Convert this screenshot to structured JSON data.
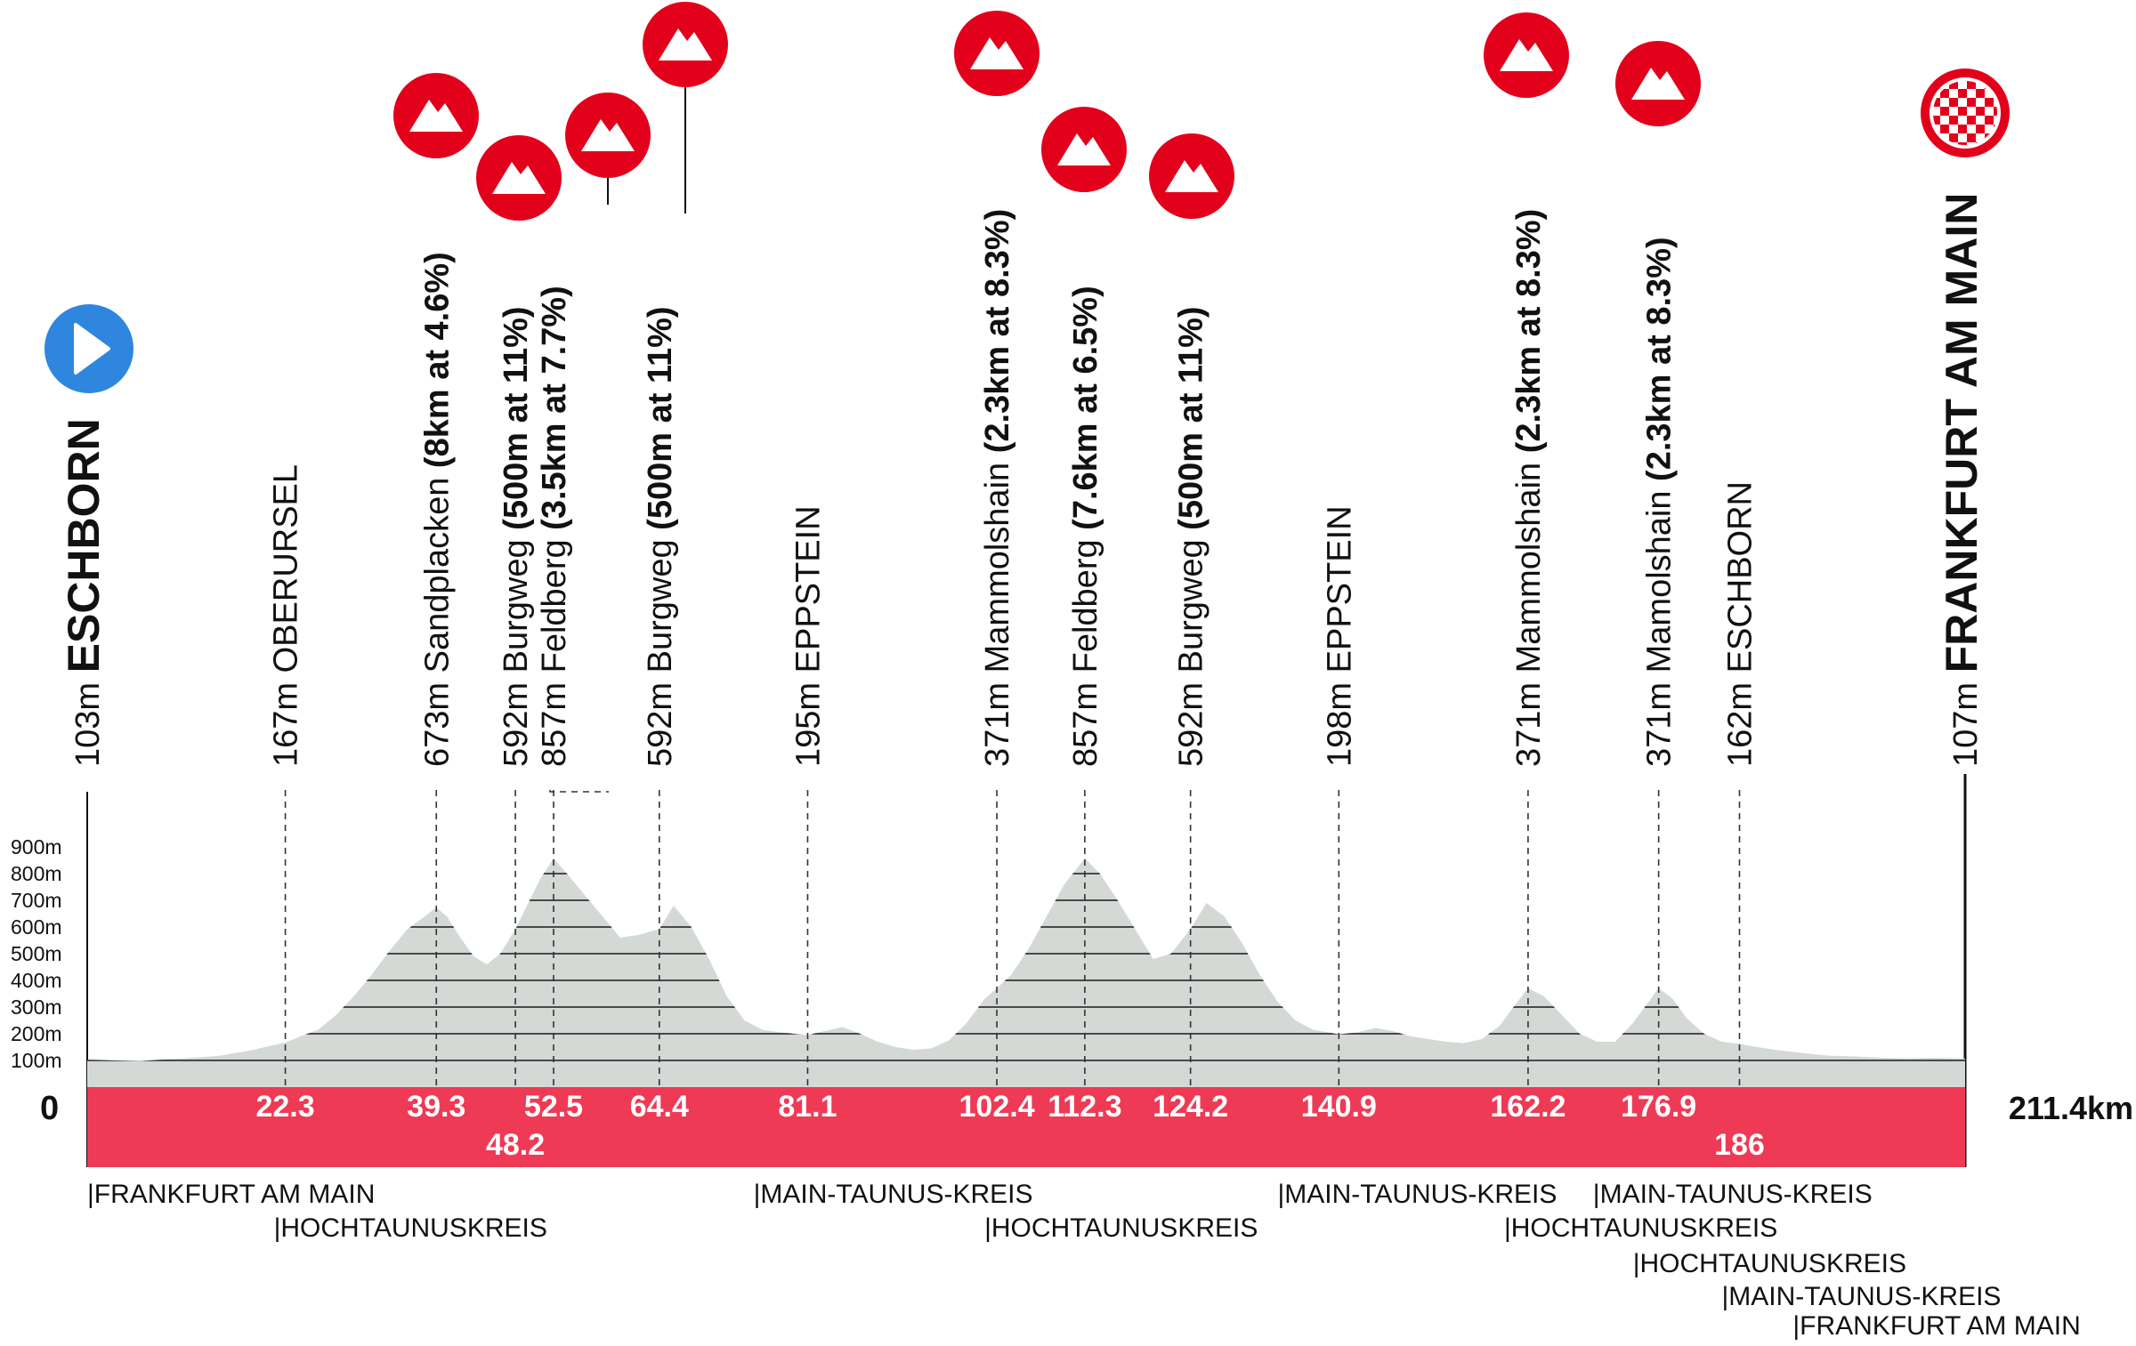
{
  "chart_data": {
    "type": "area",
    "title": "",
    "xlabel": "",
    "ylabel": "",
    "total_distance": "211.4km",
    "zero_label": "0",
    "xlim": [
      0,
      211.4
    ],
    "ylim": [
      0,
      1000
    ],
    "y_ticks": [
      "100m",
      "200m",
      "300m",
      "400m",
      "500m",
      "600m",
      "700m",
      "800m",
      "900m"
    ],
    "colors": {
      "profile_fill": "#d4d9d6",
      "distance_band": "#ef3a55",
      "climb_marker": "#e3001b",
      "start_marker": "#2e86de",
      "finish_marker": "#e3001b"
    },
    "profile": {
      "x": [
        0,
        3,
        6,
        9,
        12,
        15,
        18,
        20,
        22.3,
        24,
        26,
        28,
        30,
        32,
        34,
        36,
        38,
        39.3,
        40.5,
        42,
        43.5,
        45,
        46.5,
        48.2,
        49.5,
        51,
        52.5,
        54,
        56,
        58,
        60,
        62,
        64.4,
        66,
        68,
        70,
        72,
        74,
        76,
        78,
        81.1,
        83,
        85,
        87,
        89,
        91,
        93,
        95,
        97,
        99,
        101,
        102.4,
        104,
        106,
        108,
        110,
        112.3,
        114,
        116,
        118,
        120,
        122,
        124.2,
        126,
        128,
        130,
        132,
        134,
        136,
        138,
        140.9,
        143,
        145,
        147,
        149,
        151,
        153,
        155,
        157,
        159,
        161,
        162.2,
        164,
        166,
        168,
        170,
        172,
        174,
        176.9,
        178.5,
        180,
        182,
        184,
        186,
        188,
        190,
        193,
        196,
        199,
        202,
        205,
        208,
        211.4
      ],
      "y": [
        103,
        100,
        98,
        104,
        110,
        118,
        135,
        150,
        167,
        190,
        215,
        270,
        340,
        420,
        510,
        590,
        640,
        673,
        640,
        560,
        490,
        460,
        500,
        592,
        680,
        780,
        857,
        800,
        720,
        640,
        560,
        570,
        592,
        680,
        600,
        480,
        340,
        250,
        215,
        205,
        195,
        210,
        225,
        200,
        170,
        150,
        140,
        145,
        175,
        240,
        330,
        371,
        420,
        520,
        640,
        760,
        857,
        800,
        700,
        590,
        480,
        500,
        592,
        690,
        640,
        540,
        420,
        320,
        250,
        215,
        198,
        205,
        222,
        210,
        190,
        180,
        170,
        165,
        180,
        230,
        320,
        371,
        340,
        270,
        200,
        170,
        170,
        240,
        371,
        330,
        260,
        200,
        170,
        162,
        150,
        140,
        128,
        118,
        115,
        110,
        108,
        110,
        107
      ]
    },
    "km_markers": [
      {
        "km": 22.3,
        "label": "22.3",
        "row": 0
      },
      {
        "km": 39.3,
        "label": "39.3",
        "row": 0
      },
      {
        "km": 48.2,
        "label": "48.2",
        "row": 1
      },
      {
        "km": 52.5,
        "label": "52.5",
        "row": 0
      },
      {
        "km": 64.4,
        "label": "64.4",
        "row": 0
      },
      {
        "km": 81.1,
        "label": "81.1",
        "row": 0
      },
      {
        "km": 102.4,
        "label": "102.4",
        "row": 0
      },
      {
        "km": 112.3,
        "label": "112.3",
        "row": 0
      },
      {
        "km": 124.2,
        "label": "124.2",
        "row": 0
      },
      {
        "km": 140.9,
        "label": "140.9",
        "row": 0
      },
      {
        "km": 162.2,
        "label": "162.2",
        "row": 0
      },
      {
        "km": 176.9,
        "label": "176.9",
        "row": 0
      },
      {
        "km": 186,
        "label": "186",
        "row": 1
      }
    ],
    "waypoints": [
      {
        "km": 0,
        "type": "start",
        "elev": "103m",
        "name": "ESCHBORN",
        "detail": ""
      },
      {
        "km": 22.3,
        "type": "town",
        "elev": "167m",
        "name": "OBERURSEL",
        "detail": ""
      },
      {
        "km": 39.3,
        "type": "climb",
        "elev": "673m",
        "name": "Sandplacken",
        "detail": "(8km at 4.6%)"
      },
      {
        "km": 48.2,
        "type": "climb",
        "elev": "592m",
        "name": "Burgweg",
        "detail": "(500m at 11%)"
      },
      {
        "km": 52.5,
        "type": "climb",
        "elev": "857m",
        "name": "Feldberg",
        "detail": "(3.5km at 7.7%)"
      },
      {
        "km": 64.4,
        "type": "climb",
        "elev": "592m",
        "name": "Burgweg",
        "detail": "(500m at 11%)"
      },
      {
        "km": 81.1,
        "type": "town",
        "elev": "195m",
        "name": "EPPSTEIN",
        "detail": ""
      },
      {
        "km": 102.4,
        "type": "climb",
        "elev": "371m",
        "name": "Mammolshain",
        "detail": "(2.3km at 8.3%)"
      },
      {
        "km": 112.3,
        "type": "climb",
        "elev": "857m",
        "name": "Feldberg",
        "detail": "(7.6km at 6.5%)"
      },
      {
        "km": 124.2,
        "type": "climb",
        "elev": "592m",
        "name": "Burgweg",
        "detail": "(500m at 11%)"
      },
      {
        "km": 140.9,
        "type": "town",
        "elev": "198m",
        "name": "EPPSTEIN",
        "detail": ""
      },
      {
        "km": 162.2,
        "type": "climb",
        "elev": "371m",
        "name": "Mammolshain",
        "detail": "(2.3km at 8.3%)"
      },
      {
        "km": 176.9,
        "type": "climb",
        "elev": "371m",
        "name": "Mamolshain",
        "detail": "(2.3km at 8.3%)"
      },
      {
        "km": 186,
        "type": "town",
        "elev": "162m",
        "name": "ESCHBORN",
        "detail": ""
      },
      {
        "km": 211.4,
        "type": "finish",
        "elev": "107m",
        "name": "FRANKFURT AM MAIN",
        "detail": ""
      }
    ],
    "regions": [
      {
        "km": 0,
        "row": 0,
        "label": "|FRANKFURT AM MAIN"
      },
      {
        "km": 21,
        "row": 1,
        "label": "|HOCHTAUNUSKREIS"
      },
      {
        "km": 75,
        "row": 0,
        "label": "|MAIN-TAUNUS-KREIS"
      },
      {
        "km": 101,
        "row": 1,
        "label": "|HOCHTAUNUSKREIS"
      },
      {
        "km": 134,
        "row": 0,
        "label": "|MAIN-TAUNUS-KREIS"
      },
      {
        "km": 159.5,
        "row": 1,
        "label": "|HOCHTAUNUSKREIS"
      },
      {
        "km": 169.5,
        "row": 0,
        "label": "|MAIN-TAUNUS-KREIS"
      },
      {
        "km": 174,
        "row": 2,
        "label": "|HOCHTAUNUSKREIS"
      },
      {
        "km": 184,
        "row": 3,
        "label": "|MAIN-TAUNUS-KREIS"
      },
      {
        "km": 192,
        "row": 4,
        "label": "|FRANKFURT AM MAIN"
      }
    ]
  }
}
